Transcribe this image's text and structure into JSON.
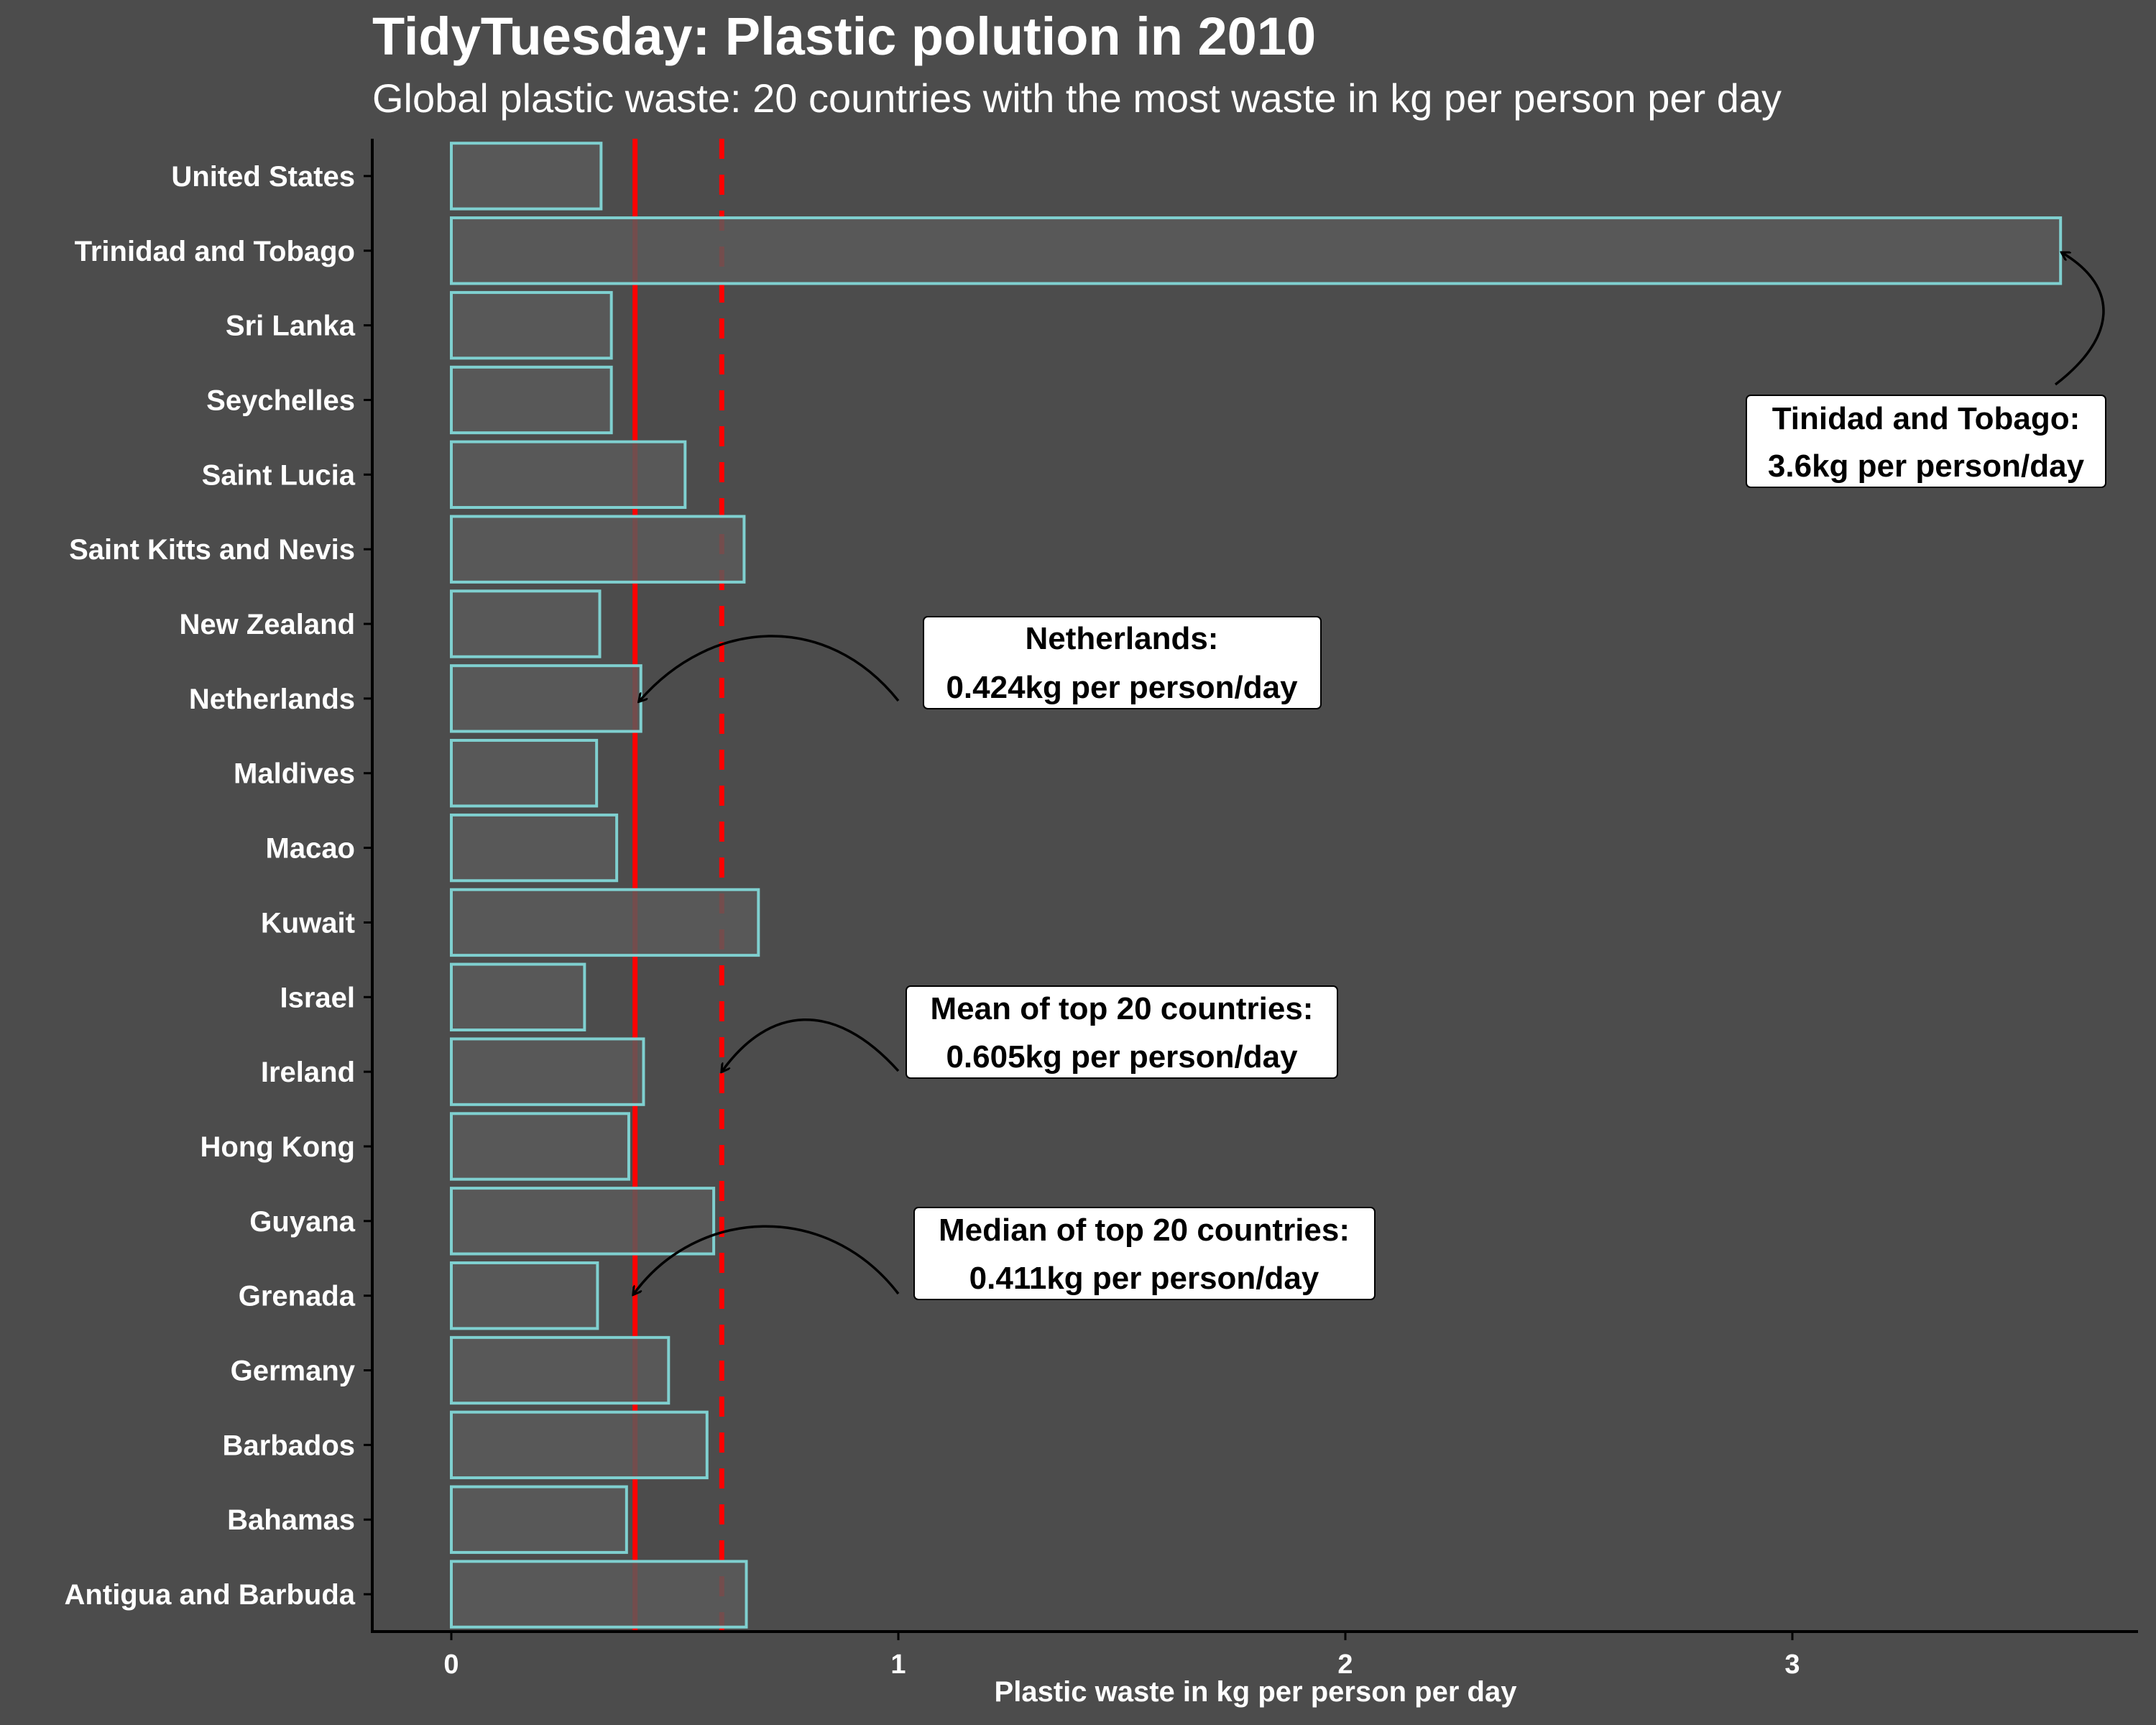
{
  "chart_data": {
    "type": "bar",
    "orientation": "horizontal",
    "title": "TidyTuesday: Plastic polution in 2010",
    "subtitle": "Global plastic waste: 20 countries with the most waste in kg per person per day",
    "xlabel": "Plastic waste in kg per person per day",
    "ylabel": "",
    "xlim": [
      -0.18,
      3.95
    ],
    "xticks": [
      0,
      1,
      2,
      3
    ],
    "categories": [
      "United States",
      "Trinidad and Tobago",
      "Sri Lanka",
      "Seychelles",
      "Saint Lucia",
      "Saint Kitts and Nevis",
      "New Zealand",
      "Netherlands",
      "Maldives",
      "Macao",
      "Kuwait",
      "Israel",
      "Ireland",
      "Hong Kong",
      "Guyana",
      "Grenada",
      "Germany",
      "Barbados",
      "Bahamas",
      "Antigua and Barbuda"
    ],
    "values": [
      0.335,
      3.6,
      0.358,
      0.358,
      0.523,
      0.655,
      0.332,
      0.424,
      0.325,
      0.37,
      0.687,
      0.298,
      0.43,
      0.397,
      0.587,
      0.327,
      0.486,
      0.572,
      0.392,
      0.66
    ],
    "reference_lines": [
      {
        "name": "median",
        "value": 0.411,
        "style": "solid",
        "color": "#ff0000"
      },
      {
        "name": "mean",
        "value": 0.605,
        "style": "dashed",
        "color": "#ff0000"
      }
    ],
    "annotations": [
      {
        "line1": "Tinidad and Tobago:",
        "line2": "3.6kg per person/day"
      },
      {
        "line1": "Netherlands:",
        "line2": "0.424kg per person/day"
      },
      {
        "line1": "Mean of top 20 countries:",
        "line2": "0.605kg per person/day"
      },
      {
        "line1": "Median of top 20 countries:",
        "line2": "0.411kg per person/day"
      }
    ],
    "grid": false,
    "colors": {
      "background": "#4c4c4c",
      "bar_fill": "#5a5a5a",
      "bar_outline": "#7fd0d0",
      "reference": "#ff0000",
      "text": "#ffffff"
    }
  }
}
